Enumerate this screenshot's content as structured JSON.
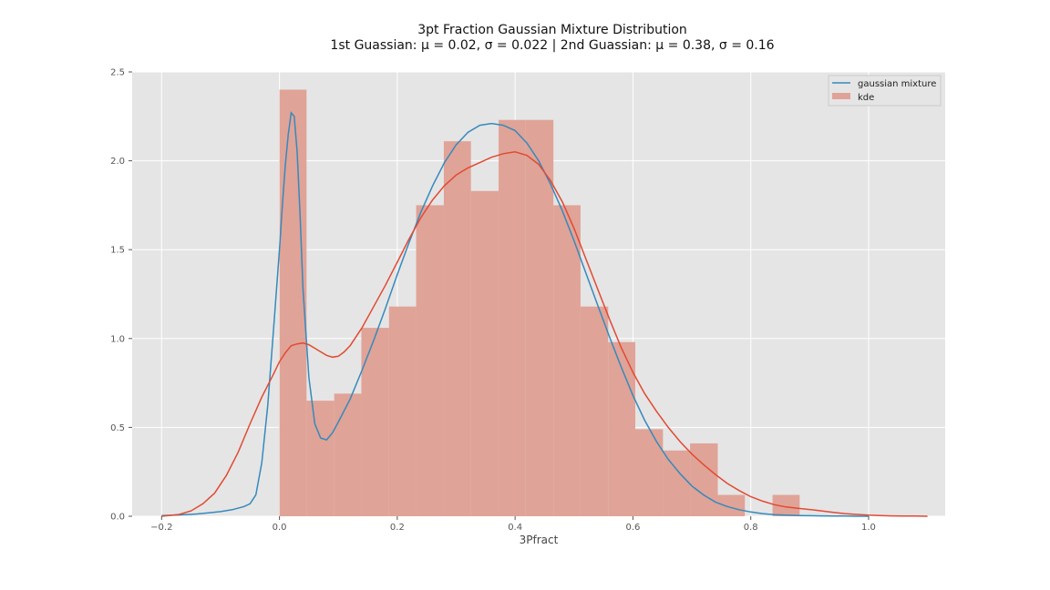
{
  "chart_data": {
    "type": "bar",
    "title": "3pt Fraction Gaussian Mixture Distribution",
    "subtitle": "1st Guassian: μ = 0.02, σ = 0.022 | 2nd Guassian: μ = 0.38, σ = 0.16",
    "xlabel": "3Pfract",
    "ylabel": "",
    "xlim": [
      -0.25,
      1.13
    ],
    "ylim": [
      0,
      2.5
    ],
    "xticks": [
      -0.2,
      0.0,
      0.2,
      0.4,
      0.6,
      0.8,
      1.0
    ],
    "xtick_labels": [
      "−0.2",
      "0.0",
      "0.2",
      "0.4",
      "0.6",
      "0.8",
      "1.0"
    ],
    "yticks": [
      0.0,
      0.5,
      1.0,
      1.5,
      2.0,
      2.5
    ],
    "ytick_labels": [
      "0.0",
      "0.5",
      "1.0",
      "1.5",
      "2.0",
      "2.5"
    ],
    "grid": true,
    "legend_position": "top-right",
    "colors": {
      "background": "#e5e5e5",
      "hist": "#e0a397",
      "mixture": "#348abd",
      "kde": "#e24a33"
    },
    "histogram": {
      "name": "kde",
      "bins": [
        {
          "x0": 0.0,
          "x1": 0.046,
          "height": 2.4
        },
        {
          "x0": 0.046,
          "x1": 0.093,
          "height": 0.65
        },
        {
          "x0": 0.093,
          "x1": 0.139,
          "height": 0.69
        },
        {
          "x0": 0.139,
          "x1": 0.186,
          "height": 1.06
        },
        {
          "x0": 0.186,
          "x1": 0.232,
          "height": 1.18
        },
        {
          "x0": 0.232,
          "x1": 0.279,
          "height": 1.75
        },
        {
          "x0": 0.279,
          "x1": 0.325,
          "height": 2.11
        },
        {
          "x0": 0.325,
          "x1": 0.372,
          "height": 1.83
        },
        {
          "x0": 0.372,
          "x1": 0.418,
          "height": 2.23
        },
        {
          "x0": 0.418,
          "x1": 0.465,
          "height": 2.23
        },
        {
          "x0": 0.465,
          "x1": 0.511,
          "height": 1.75
        },
        {
          "x0": 0.511,
          "x1": 0.558,
          "height": 1.18
        },
        {
          "x0": 0.558,
          "x1": 0.604,
          "height": 0.98
        },
        {
          "x0": 0.604,
          "x1": 0.651,
          "height": 0.49
        },
        {
          "x0": 0.651,
          "x1": 0.697,
          "height": 0.37
        },
        {
          "x0": 0.697,
          "x1": 0.744,
          "height": 0.41
        },
        {
          "x0": 0.744,
          "x1": 0.79,
          "height": 0.12
        },
        {
          "x0": 0.79,
          "x1": 0.837,
          "height": 0.0
        },
        {
          "x0": 0.837,
          "x1": 0.883,
          "height": 0.12
        },
        {
          "x0": 0.883,
          "x1": 0.93,
          "height": 0.0
        }
      ]
    },
    "series": [
      {
        "name": "gaussian mixture",
        "type": "line",
        "x": [
          -0.2,
          -0.17,
          -0.14,
          -0.12,
          -0.1,
          -0.08,
          -0.06,
          -0.05,
          -0.04,
          -0.03,
          -0.02,
          -0.01,
          0.0,
          0.005,
          0.01,
          0.015,
          0.02,
          0.025,
          0.03,
          0.035,
          0.04,
          0.05,
          0.06,
          0.07,
          0.08,
          0.09,
          0.1,
          0.12,
          0.14,
          0.16,
          0.18,
          0.2,
          0.22,
          0.24,
          0.26,
          0.28,
          0.3,
          0.32,
          0.34,
          0.36,
          0.38,
          0.4,
          0.42,
          0.44,
          0.46,
          0.48,
          0.5,
          0.52,
          0.54,
          0.56,
          0.58,
          0.6,
          0.62,
          0.64,
          0.66,
          0.68,
          0.7,
          0.72,
          0.74,
          0.76,
          0.78,
          0.8,
          0.82,
          0.84,
          0.86,
          0.88,
          0.9,
          0.92,
          0.94,
          0.96,
          0.98,
          1.0
        ],
        "y": [
          0.004,
          0.007,
          0.013,
          0.019,
          0.026,
          0.037,
          0.055,
          0.07,
          0.12,
          0.3,
          0.62,
          1.05,
          1.5,
          1.75,
          1.98,
          2.15,
          2.27,
          2.25,
          2.05,
          1.7,
          1.28,
          0.78,
          0.52,
          0.44,
          0.43,
          0.47,
          0.53,
          0.66,
          0.82,
          0.99,
          1.17,
          1.36,
          1.54,
          1.71,
          1.86,
          1.99,
          2.09,
          2.16,
          2.2,
          2.21,
          2.2,
          2.17,
          2.1,
          2.0,
          1.87,
          1.72,
          1.55,
          1.37,
          1.19,
          1.01,
          0.84,
          0.68,
          0.54,
          0.42,
          0.32,
          0.24,
          0.17,
          0.12,
          0.08,
          0.055,
          0.037,
          0.024,
          0.015,
          0.009,
          0.006,
          0.004,
          0.003,
          0.002,
          0.001,
          0.001,
          0.0,
          0.0
        ]
      },
      {
        "name": "",
        "type": "line",
        "x": [
          -0.2,
          -0.17,
          -0.15,
          -0.13,
          -0.11,
          -0.09,
          -0.07,
          -0.05,
          -0.03,
          -0.01,
          0.0,
          0.01,
          0.02,
          0.03,
          0.04,
          0.05,
          0.06,
          0.07,
          0.08,
          0.09,
          0.1,
          0.11,
          0.12,
          0.14,
          0.16,
          0.18,
          0.2,
          0.22,
          0.24,
          0.26,
          0.28,
          0.3,
          0.32,
          0.34,
          0.36,
          0.38,
          0.4,
          0.42,
          0.44,
          0.46,
          0.48,
          0.5,
          0.52,
          0.54,
          0.56,
          0.58,
          0.6,
          0.62,
          0.64,
          0.66,
          0.68,
          0.7,
          0.72,
          0.74,
          0.76,
          0.78,
          0.8,
          0.82,
          0.84,
          0.86,
          0.88,
          0.9,
          0.92,
          0.94,
          0.96,
          0.98,
          1.0,
          1.02,
          1.04,
          1.06,
          1.08,
          1.1
        ],
        "y": [
          0.0,
          0.01,
          0.03,
          0.07,
          0.13,
          0.23,
          0.36,
          0.52,
          0.67,
          0.8,
          0.87,
          0.92,
          0.96,
          0.97,
          0.975,
          0.965,
          0.945,
          0.925,
          0.905,
          0.895,
          0.9,
          0.925,
          0.96,
          1.06,
          1.18,
          1.3,
          1.43,
          1.56,
          1.68,
          1.78,
          1.86,
          1.92,
          1.96,
          1.99,
          2.02,
          2.04,
          2.05,
          2.03,
          1.98,
          1.89,
          1.77,
          1.62,
          1.45,
          1.28,
          1.11,
          0.95,
          0.81,
          0.69,
          0.59,
          0.5,
          0.42,
          0.35,
          0.29,
          0.235,
          0.185,
          0.145,
          0.11,
          0.085,
          0.065,
          0.052,
          0.045,
          0.038,
          0.03,
          0.022,
          0.015,
          0.01,
          0.006,
          0.004,
          0.002,
          0.001,
          0.001,
          0.0
        ]
      }
    ]
  }
}
